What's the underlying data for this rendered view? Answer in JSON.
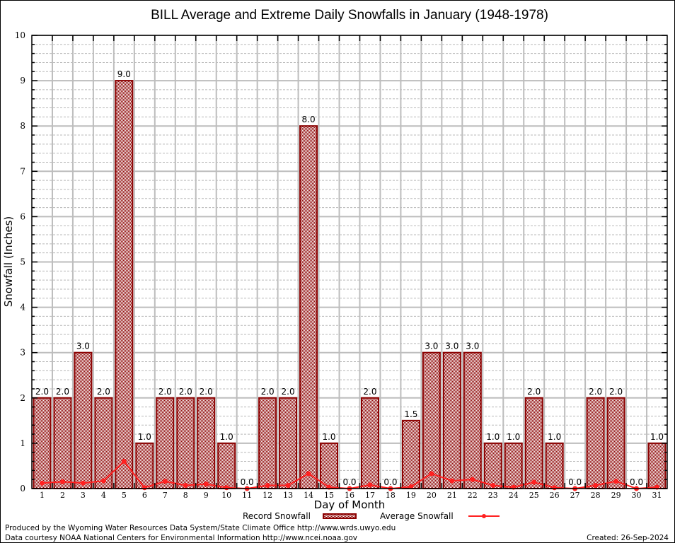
{
  "chart_data": {
    "type": "bar",
    "title": "BILL Average and Extreme Daily Snowfalls in January (1948-1978)",
    "xlabel": "Day of Month",
    "ylabel": "Snowfall (Inches)",
    "ylim": [
      0,
      10
    ],
    "yticks": [
      0,
      1,
      2,
      3,
      4,
      5,
      6,
      7,
      8,
      9,
      10
    ],
    "minor_step": 0.2,
    "grid": true,
    "categories": [
      "1",
      "2",
      "3",
      "4",
      "5",
      "6",
      "7",
      "8",
      "9",
      "10",
      "11",
      "12",
      "13",
      "14",
      "15",
      "16",
      "17",
      "18",
      "19",
      "20",
      "21",
      "22",
      "23",
      "24",
      "25",
      "26",
      "27",
      "28",
      "29",
      "30",
      "31"
    ],
    "series": [
      {
        "name": "Record Snowfall",
        "type": "bar",
        "color": "#8b0000",
        "values": [
          2.0,
          2.0,
          3.0,
          2.0,
          9.0,
          1.0,
          2.0,
          2.0,
          2.0,
          1.0,
          0.0,
          2.0,
          2.0,
          8.0,
          1.0,
          0.0,
          2.0,
          0.0,
          1.5,
          3.0,
          3.0,
          3.0,
          1.0,
          1.0,
          2.0,
          1.0,
          0.0,
          2.0,
          2.0,
          0.0,
          1.0
        ],
        "labels": [
          "2.0",
          "2.0",
          "3.0",
          "2.0",
          "9.0",
          "1.0",
          "2.0",
          "2.0",
          "2.0",
          "1.0",
          "0.0",
          "2.0",
          "2.0",
          "8.0",
          "1.0",
          "0.0",
          "2.0",
          "0.0",
          "1.5",
          "3.0",
          "3.0",
          "3.0",
          "1.0",
          "1.0",
          "2.0",
          "1.0",
          "0.0",
          "2.0",
          "2.0",
          "0.0",
          "1.0"
        ]
      },
      {
        "name": "Average Snowfall",
        "type": "line",
        "color": "#ff2020",
        "values": [
          0.12,
          0.15,
          0.12,
          0.17,
          0.6,
          0.02,
          0.16,
          0.07,
          0.1,
          0.02,
          0.0,
          0.07,
          0.07,
          0.33,
          0.03,
          0.0,
          0.08,
          0.0,
          0.04,
          0.33,
          0.17,
          0.2,
          0.07,
          0.03,
          0.14,
          0.02,
          0.0,
          0.07,
          0.16,
          0.0,
          0.03
        ]
      }
    ],
    "legend": {
      "position": "bottom-center",
      "entries": [
        "Record Snowfall",
        "Average Snowfall"
      ]
    }
  },
  "footer": {
    "produced_by": "Produced by the Wyoming Water Resources Data System/State Climate Office http://www.wrds.uwyo.edu",
    "data_courtesy": "Data courtesy NOAA National Centers for Environmental Information http://www.ncei.noaa.gov",
    "created": "Created:  26-Sep-2024"
  }
}
